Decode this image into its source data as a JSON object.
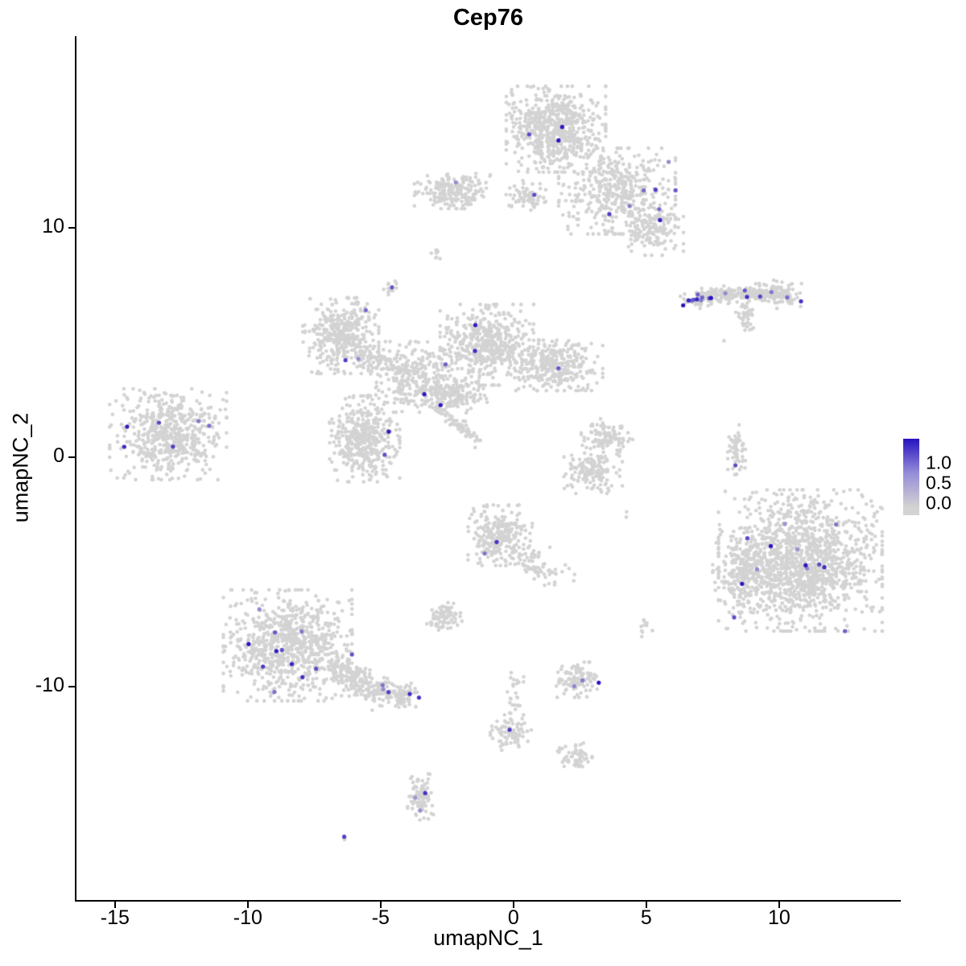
{
  "chart_data": {
    "type": "scatter",
    "title": "Cep76",
    "xlabel": "umapNC_1",
    "ylabel": "umapNC_2",
    "xlim": [
      -16.45,
      14.55
    ],
    "ylim": [
      -19.3,
      18.35
    ],
    "x_ticks": [
      -15,
      -10,
      -5,
      0,
      5,
      10
    ],
    "y_ticks": [
      -10,
      0,
      10
    ],
    "grid": false,
    "legend": {
      "position": "right",
      "labels": [
        "1.0",
        "0.5",
        "0.0"
      ],
      "high": "#2713c0",
      "mid": "#968dd8",
      "low": "#d3d3d3"
    },
    "colors": {
      "low": "#d3d3d3",
      "high": "#2713c0",
      "background": "#ffffff"
    },
    "point_radius_px": 2.3,
    "clusters": [
      {
        "name": "top-main",
        "cx": 1.6,
        "cy": 14.3,
        "sx": 0.85,
        "sy": 0.85,
        "n": 650,
        "n_expr": 3
      },
      {
        "name": "top-wing",
        "cx": 3.9,
        "cy": 11.6,
        "sx": 1.0,
        "sy": 0.85,
        "n": 450,
        "n_expr": 6
      },
      {
        "name": "top-tail",
        "cx": 5.3,
        "cy": 9.9,
        "sx": 0.5,
        "sy": 0.5,
        "n": 160,
        "n_expr": 2
      },
      {
        "name": "top-left-arm",
        "cx": 0.6,
        "cy": 11.4,
        "sx": 0.4,
        "sy": 0.3,
        "n": 70,
        "n_expr": 1
      },
      {
        "name": "upper-left",
        "cx": -2.3,
        "cy": 11.6,
        "sx": 0.65,
        "sy": 0.35,
        "n": 200,
        "n_expr": 1
      },
      {
        "name": "tiny-mid-upper",
        "cx": -2.9,
        "cy": 8.9,
        "sx": 0.12,
        "sy": 0.15,
        "n": 8,
        "n_expr": 0
      },
      {
        "name": "small-left-upper",
        "cx": -4.6,
        "cy": 7.4,
        "sx": 0.15,
        "sy": 0.2,
        "n": 14,
        "n_expr": 1
      },
      {
        "name": "right-streak-a",
        "type": "streak",
        "x1": 6.6,
        "y1": 6.85,
        "x2": 8.0,
        "y2": 7.1,
        "jitter": 0.16,
        "n": 120,
        "n_expr": 12
      },
      {
        "name": "right-streak-b",
        "type": "streak",
        "x1": 8.0,
        "y1": 7.05,
        "x2": 10.3,
        "y2": 7.15,
        "jitter": 0.16,
        "n": 160,
        "n_expr": 4
      },
      {
        "name": "right-streak-end",
        "cx": 10.0,
        "cy": 7.1,
        "sx": 0.4,
        "sy": 0.28,
        "n": 80,
        "n_expr": 2
      },
      {
        "name": "right-streak-drop",
        "cx": 8.7,
        "cy": 6.25,
        "sx": 0.15,
        "sy": 0.45,
        "n": 45,
        "n_expr": 0
      },
      {
        "name": "mid-left",
        "cx": -6.5,
        "cy": 5.3,
        "sx": 0.65,
        "sy": 0.75,
        "n": 380,
        "n_expr": 2
      },
      {
        "name": "mid-left-bridge",
        "type": "streak",
        "x1": -5.9,
        "y1": 4.6,
        "x2": -4.3,
        "y2": 3.9,
        "jitter": 0.25,
        "n": 70,
        "n_expr": 1
      },
      {
        "name": "central-main",
        "cx": -1.0,
        "cy": 4.9,
        "sx": 0.8,
        "sy": 0.8,
        "n": 480,
        "n_expr": 2
      },
      {
        "name": "central-left",
        "cx": -3.7,
        "cy": 3.5,
        "sx": 0.8,
        "sy": 0.7,
        "n": 320,
        "n_expr": 1
      },
      {
        "name": "central-right",
        "cx": 1.6,
        "cy": 4.0,
        "sx": 0.8,
        "sy": 0.5,
        "n": 320,
        "n_expr": 1
      },
      {
        "name": "central-bridge",
        "cx": -2.2,
        "cy": 2.7,
        "sx": 0.55,
        "sy": 0.35,
        "n": 160,
        "n_expr": 1
      },
      {
        "name": "center-blob",
        "cx": -5.6,
        "cy": 0.8,
        "sx": 0.6,
        "sy": 0.85,
        "n": 420,
        "n_expr": 2
      },
      {
        "name": "diag-streak",
        "type": "streak",
        "x1": -2.9,
        "y1": 2.3,
        "x2": -1.3,
        "y2": 0.6,
        "jitter": 0.12,
        "n": 70,
        "n_expr": 1
      },
      {
        "name": "far-left",
        "cx": -13.0,
        "cy": 1.0,
        "sx": 1.0,
        "sy": 0.9,
        "n": 550,
        "n_expr": 6
      },
      {
        "name": "right-arc-top",
        "cx": 3.5,
        "cy": 0.9,
        "sx": 0.45,
        "sy": 0.35,
        "n": 110,
        "n_expr": 0
      },
      {
        "name": "right-arc-bottom",
        "cx": 3.0,
        "cy": -0.7,
        "sx": 0.5,
        "sy": 0.4,
        "n": 140,
        "n_expr": 0
      },
      {
        "name": "right-vert-streak",
        "cx": 8.4,
        "cy": 0.2,
        "sx": 0.15,
        "sy": 0.55,
        "n": 55,
        "n_expr": 1
      },
      {
        "name": "bottom-right-main",
        "cx": 10.8,
        "cy": -4.5,
        "sx": 1.4,
        "sy": 1.4,
        "n": 1400,
        "n_expr": 12
      },
      {
        "name": "bottom-right-appendage",
        "cx": 8.6,
        "cy": -5.0,
        "sx": 0.5,
        "sy": 0.8,
        "n": 180,
        "n_expr": 1
      },
      {
        "name": "center-lower",
        "cx": -0.5,
        "cy": -3.4,
        "sx": 0.55,
        "sy": 0.6,
        "n": 260,
        "n_expr": 2
      },
      {
        "name": "center-lower-tail",
        "type": "streak",
        "x1": 0.2,
        "y1": -4.3,
        "x2": 1.7,
        "y2": -5.3,
        "jitter": 0.3,
        "n": 70,
        "n_expr": 0
      },
      {
        "name": "small-center-blob",
        "cx": -2.6,
        "cy": -7.0,
        "sx": 0.3,
        "sy": 0.3,
        "n": 80,
        "n_expr": 0
      },
      {
        "name": "bottom-left-main",
        "cx": -8.5,
        "cy": -8.2,
        "sx": 1.1,
        "sy": 1.1,
        "n": 800,
        "n_expr": 12
      },
      {
        "name": "bottom-left-tail",
        "type": "streak",
        "x1": -6.8,
        "y1": -9.3,
        "x2": -4.6,
        "y2": -10.3,
        "jitter": 0.35,
        "n": 220,
        "n_expr": 3
      },
      {
        "name": "bottom-left-tip",
        "cx": -4.2,
        "cy": -10.4,
        "sx": 0.3,
        "sy": 0.25,
        "n": 70,
        "n_expr": 2
      },
      {
        "name": "bottom-small",
        "cx": 2.4,
        "cy": -9.7,
        "sx": 0.4,
        "sy": 0.35,
        "n": 110,
        "n_expr": 3
      },
      {
        "name": "tiny-pair-right",
        "cx": 4.9,
        "cy": -7.4,
        "sx": 0.15,
        "sy": 0.2,
        "n": 10,
        "n_expr": 0
      },
      {
        "name": "bottom-streak",
        "cx": -0.1,
        "cy": -12.0,
        "sx": 0.35,
        "sy": 0.35,
        "n": 80,
        "n_expr": 1
      },
      {
        "name": "bottom-trail",
        "type": "streak",
        "x1": 0.2,
        "y1": -9.6,
        "x2": 0.0,
        "y2": -11.3,
        "jitter": 0.15,
        "n": 25,
        "n_expr": 0
      },
      {
        "name": "bottom-blob",
        "cx": 2.3,
        "cy": -13.0,
        "sx": 0.3,
        "sy": 0.25,
        "n": 55,
        "n_expr": 0
      },
      {
        "name": "bottom-center",
        "cx": -3.5,
        "cy": -14.9,
        "sx": 0.22,
        "sy": 0.5,
        "n": 90,
        "n_expr": 3
      },
      {
        "name": "bottom-tiny",
        "cx": -6.3,
        "cy": -16.6,
        "sx": 0.1,
        "sy": 0.1,
        "n": 3,
        "n_expr": 1
      },
      {
        "name": "isolated-1",
        "cx": 7.9,
        "cy": 5.0,
        "sx": 0.05,
        "sy": 0.05,
        "n": 1,
        "n_expr": 0
      },
      {
        "name": "isolated-2",
        "cx": 4.2,
        "cy": -2.6,
        "sx": 0.1,
        "sy": 0.1,
        "n": 2,
        "n_expr": 0
      }
    ]
  }
}
